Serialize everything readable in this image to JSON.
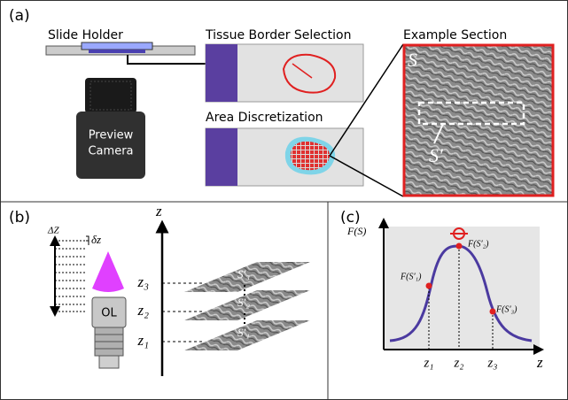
{
  "panel_a": {
    "label": "(a)",
    "slide_holder": "Slide Holder",
    "tissue_border_selection": "Tissue Border Selection",
    "area_discretization": "Area Discretization",
    "example_section": "Example Section",
    "camera": [
      "Preview",
      "Camera"
    ],
    "section_label": "S",
    "subsection_label": "S′"
  },
  "panel_b": {
    "label": "(b)",
    "range_label": "ΔZ",
    "step_label": "δz",
    "objective_label": "OL",
    "axis_label": "z",
    "planes": [
      "z₃",
      "z₂",
      "z₁"
    ],
    "slices": [
      "S′₃",
      "S′₂",
      "S′₁"
    ]
  },
  "panel_c": {
    "label": "(c)",
    "y_axis_label": "F(S)",
    "x_axis_label": "z",
    "x_ticks": [
      "z₁",
      "z₂",
      "z₃"
    ],
    "points": [
      "F(S′₁)",
      "F(S′₂)",
      "F(S′₃)"
    ]
  }
}
